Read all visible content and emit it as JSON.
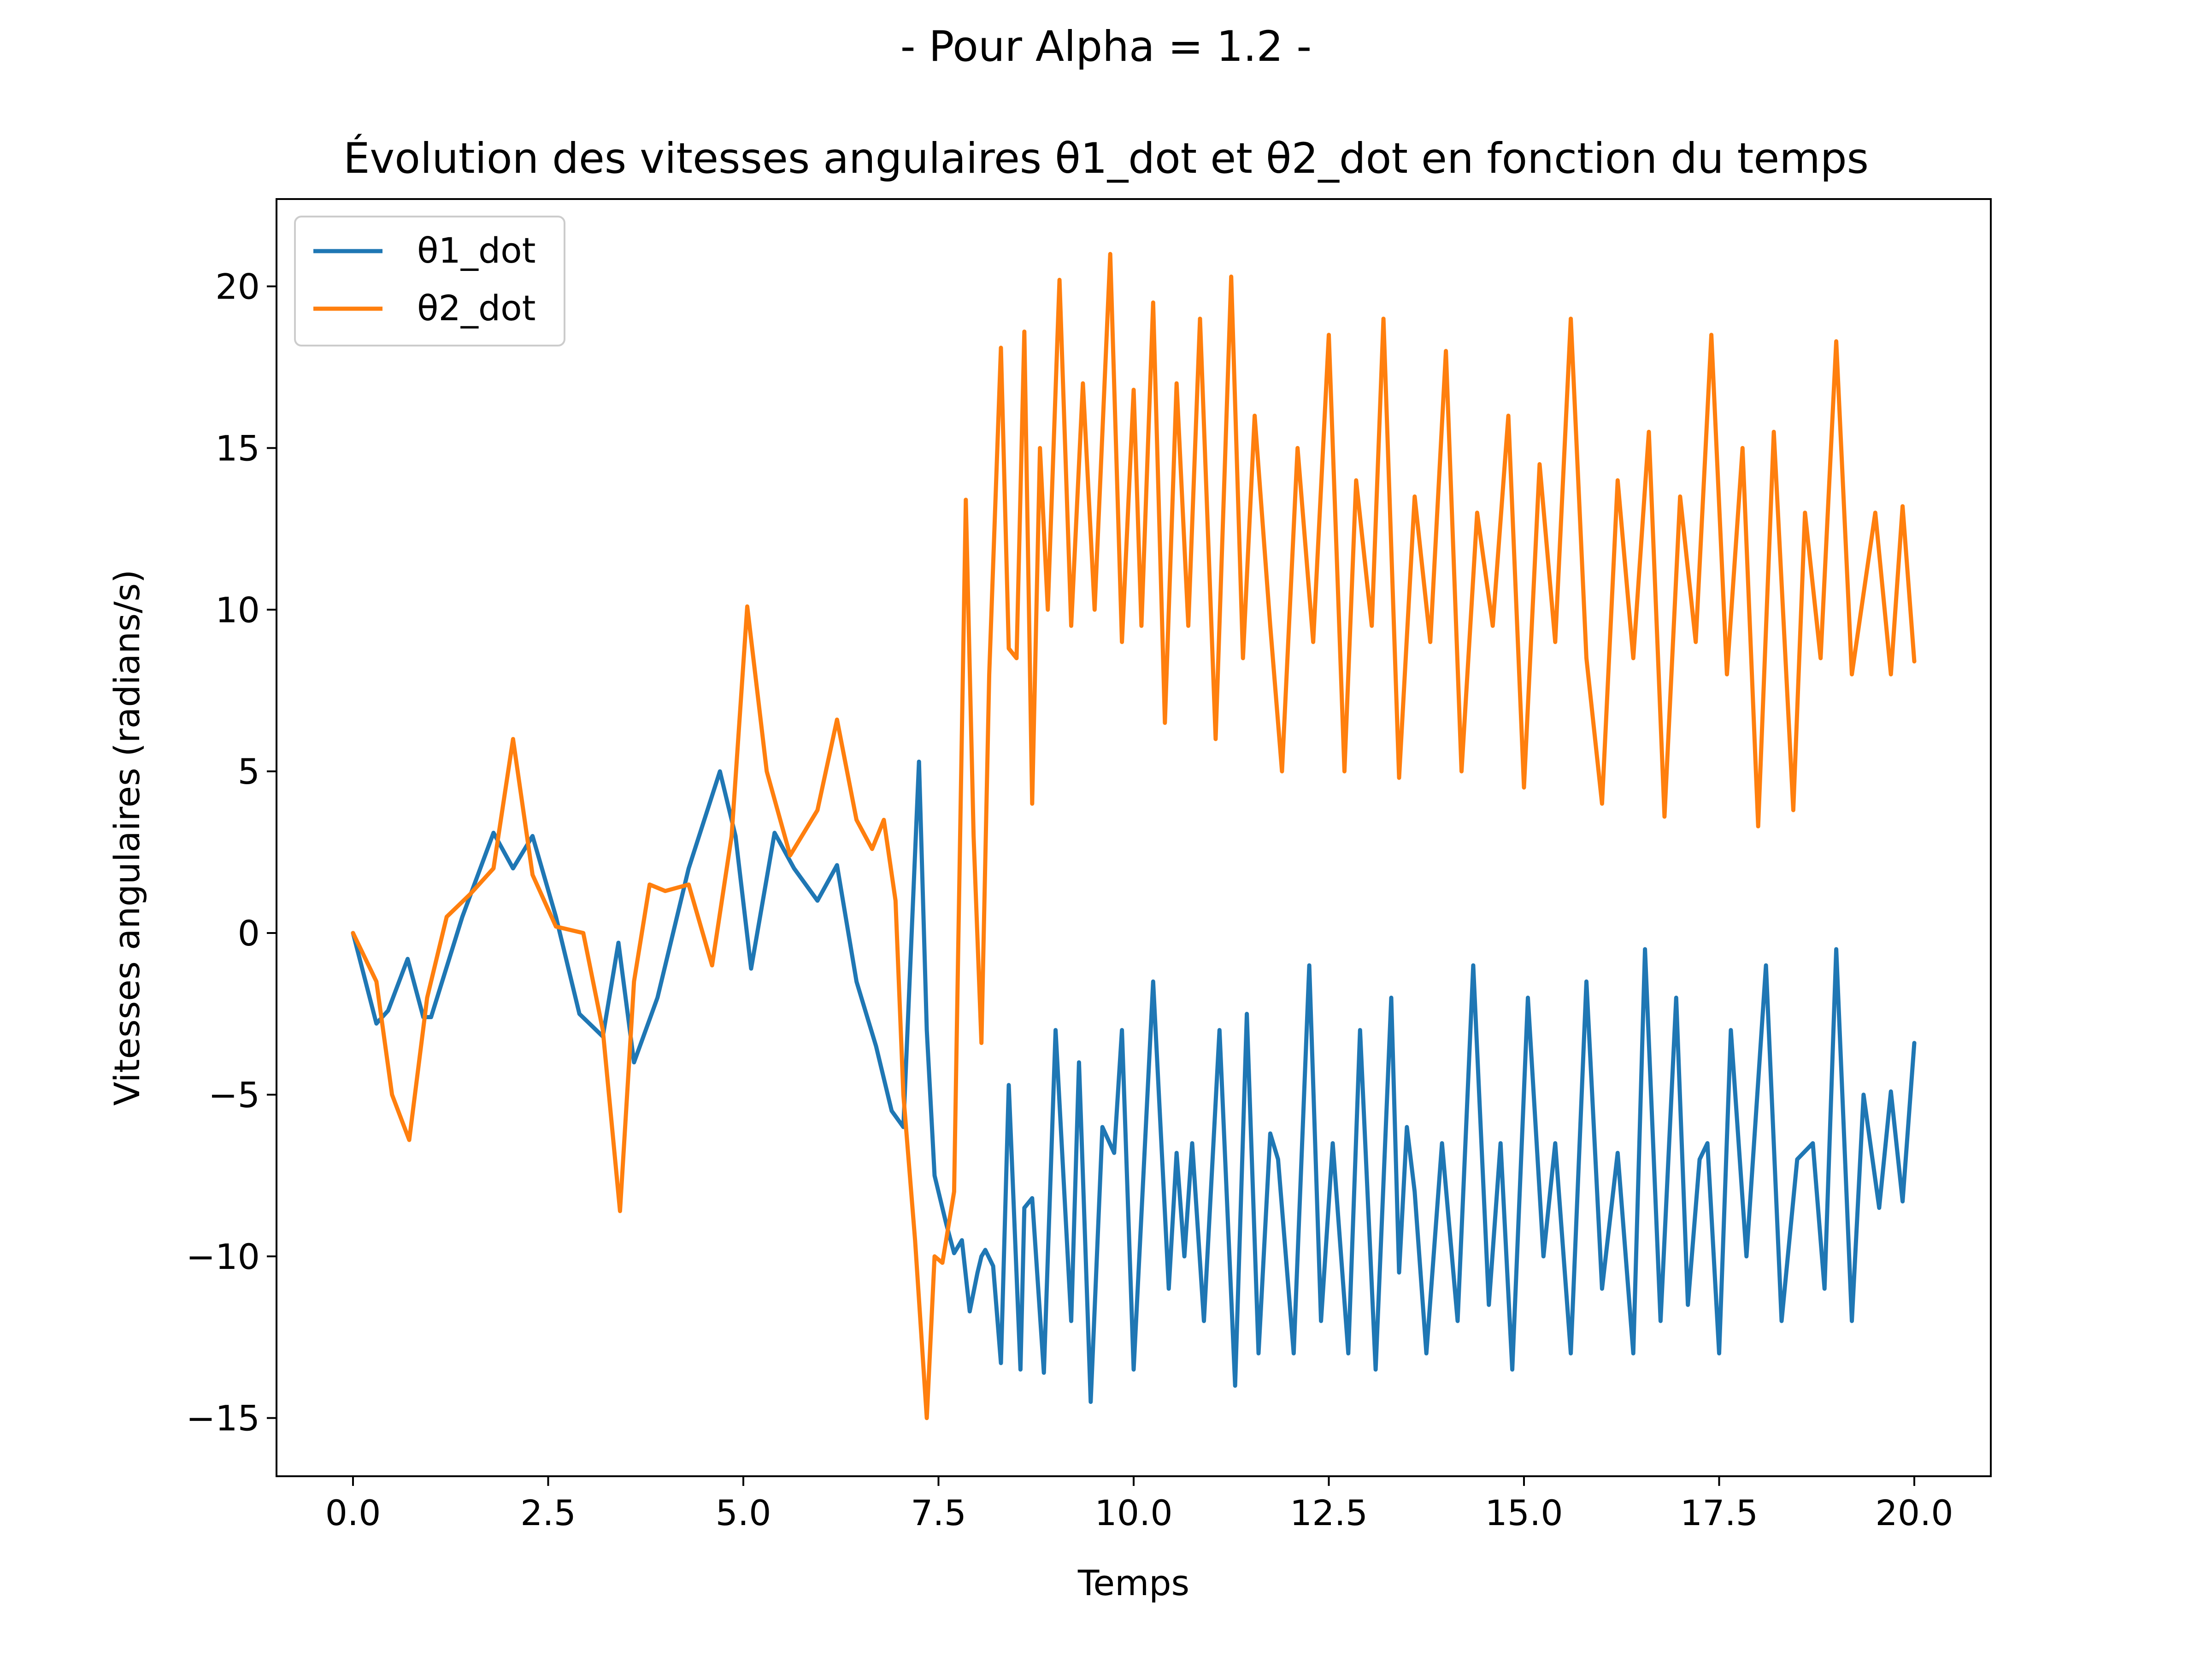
{
  "chart_data": {
    "type": "line",
    "suptitle": "- Pour Alpha = 1.2 -",
    "title": "Évolution des vitesses angulaires θ1_dot et θ2_dot en fonction du temps",
    "xlabel": "Temps",
    "ylabel": "Vitesses angulaires (radians/s)",
    "xlim": [
      -0.98,
      20.98
    ],
    "ylim": [
      -16.8,
      22.7
    ],
    "xticks": [
      0.0,
      2.5,
      5.0,
      7.5,
      10.0,
      12.5,
      15.0,
      17.5,
      20.0
    ],
    "xtick_labels": [
      "0.0",
      "2.5",
      "5.0",
      "7.5",
      "10.0",
      "12.5",
      "15.0",
      "17.5",
      "20.0"
    ],
    "yticks": [
      -15,
      -10,
      -5,
      0,
      5,
      10,
      15,
      20
    ],
    "ytick_labels": [
      "−15",
      "−10",
      "−5",
      "0",
      "5",
      "10",
      "15",
      "20"
    ],
    "grid": false,
    "legend": "upper left",
    "series": [
      {
        "name": "θ1_dot",
        "color": "#1f77b4",
        "x": [
          0.0,
          0.3,
          0.45,
          0.7,
          0.9,
          1.0,
          1.4,
          1.8,
          2.05,
          2.3,
          2.6,
          2.9,
          3.2,
          3.4,
          3.6,
          3.9,
          4.3,
          4.7,
          4.9,
          5.1,
          5.4,
          5.65,
          5.95,
          6.2,
          6.45,
          6.7,
          6.9,
          7.05,
          7.25,
          7.35,
          7.45,
          7.6,
          7.7,
          7.8,
          7.9,
          8.0,
          8.05,
          8.1,
          8.2,
          8.3,
          8.4,
          8.55,
          8.6,
          8.7,
          8.85,
          9.0,
          9.2,
          9.3,
          9.45,
          9.6,
          9.75,
          9.85,
          10.0,
          10.25,
          10.45,
          10.55,
          10.65,
          10.75,
          10.9,
          11.1,
          11.3,
          11.45,
          11.6,
          11.75,
          11.85,
          12.05,
          12.25,
          12.4,
          12.55,
          12.75,
          12.9,
          13.1,
          13.3,
          13.4,
          13.5,
          13.6,
          13.75,
          13.95,
          14.15,
          14.35,
          14.55,
          14.7,
          14.85,
          15.05,
          15.25,
          15.4,
          15.6,
          15.8,
          16.0,
          16.2,
          16.4,
          16.55,
          16.75,
          16.95,
          17.1,
          17.25,
          17.35,
          17.5,
          17.65,
          17.85,
          18.1,
          18.3,
          18.5,
          18.7,
          18.85,
          19.0,
          19.2,
          19.35,
          19.55,
          19.7,
          19.85,
          20.0
        ],
        "y": [
          0,
          -2.8,
          -2.4,
          -0.8,
          -2.6,
          -2.6,
          0.5,
          3.1,
          2.0,
          3.0,
          0.5,
          -2.5,
          -3.2,
          -0.3,
          -4.0,
          -2.0,
          2.0,
          5.0,
          3.0,
          -1.1,
          3.1,
          2.0,
          1.0,
          2.1,
          -1.5,
          -3.5,
          -5.5,
          -6.0,
          5.3,
          -3.0,
          -7.5,
          -9.0,
          -9.9,
          -9.5,
          -11.7,
          -10.5,
          -10.0,
          -9.8,
          -10.3,
          -13.3,
          -4.7,
          -13.5,
          -8.5,
          -8.2,
          -13.6,
          -3.0,
          -12.0,
          -4.0,
          -14.5,
          -6.0,
          -6.8,
          -3.0,
          -13.5,
          -1.5,
          -11.0,
          -6.8,
          -10.0,
          -6.5,
          -12.0,
          -3.0,
          -14.0,
          -2.5,
          -13.0,
          -6.2,
          -7.0,
          -13.0,
          -1.0,
          -12.0,
          -6.5,
          -13.0,
          -3.0,
          -13.5,
          -2.0,
          -10.5,
          -6.0,
          -8.0,
          -13.0,
          -6.5,
          -12.0,
          -1.0,
          -11.5,
          -6.5,
          -13.5,
          -2.0,
          -10.0,
          -6.5,
          -13.0,
          -1.5,
          -11.0,
          -6.8,
          -13.0,
          -0.5,
          -12.0,
          -2.0,
          -11.5,
          -7.0,
          -6.5,
          -13.0,
          -3.0,
          -10.0,
          -1.0,
          -12.0,
          -7.0,
          -6.5,
          -11.0,
          -0.5,
          -12.0,
          -5.0,
          -8.5,
          -4.9,
          -8.3,
          -3.4
        ]
      },
      {
        "name": "θ2_dot",
        "color": "#ff7f0e",
        "x": [
          0.0,
          0.3,
          0.5,
          0.72,
          0.95,
          1.2,
          1.5,
          1.8,
          2.05,
          2.3,
          2.6,
          2.95,
          3.2,
          3.42,
          3.6,
          3.8,
          4.0,
          4.3,
          4.6,
          4.85,
          5.05,
          5.3,
          5.6,
          5.95,
          6.2,
          6.45,
          6.65,
          6.8,
          6.95,
          7.05,
          7.2,
          7.35,
          7.45,
          7.55,
          7.7,
          7.85,
          7.95,
          8.05,
          8.15,
          8.3,
          8.4,
          8.5,
          8.6,
          8.7,
          8.8,
          8.9,
          9.05,
          9.2,
          9.35,
          9.5,
          9.7,
          9.85,
          10.0,
          10.1,
          10.25,
          10.4,
          10.55,
          10.7,
          10.85,
          11.05,
          11.25,
          11.4,
          11.55,
          11.75,
          11.9,
          12.1,
          12.3,
          12.5,
          12.7,
          12.85,
          13.05,
          13.2,
          13.4,
          13.6,
          13.8,
          14.0,
          14.2,
          14.4,
          14.6,
          14.8,
          15.0,
          15.2,
          15.4,
          15.6,
          15.8,
          16.0,
          16.2,
          16.4,
          16.6,
          16.8,
          17.0,
          17.2,
          17.4,
          17.6,
          17.8,
          18.0,
          18.2,
          18.45,
          18.6,
          18.8,
          19.0,
          19.2,
          19.5,
          19.7,
          19.85,
          20.0
        ],
        "y": [
          0,
          -1.5,
          -5.0,
          -6.4,
          -2.0,
          0.5,
          1.2,
          2.0,
          6.0,
          1.8,
          0.2,
          0.0,
          -3.0,
          -8.6,
          -1.5,
          1.5,
          1.3,
          1.5,
          -1.0,
          3.0,
          10.1,
          5.0,
          2.4,
          3.8,
          6.6,
          3.5,
          2.6,
          3.5,
          1.0,
          -5.0,
          -9.5,
          -15.0,
          -10.0,
          -10.2,
          -8.0,
          13.4,
          3.0,
          -3.4,
          8.0,
          18.1,
          8.8,
          8.5,
          18.6,
          4.0,
          15.0,
          10.0,
          20.2,
          9.5,
          17.0,
          10.0,
          21.0,
          9.0,
          16.8,
          9.5,
          19.5,
          6.5,
          17.0,
          9.5,
          19.0,
          6.0,
          20.3,
          8.5,
          16.0,
          9.5,
          5.0,
          15.0,
          9.0,
          18.5,
          5.0,
          14.0,
          9.5,
          19.0,
          4.8,
          13.5,
          9.0,
          18.0,
          5.0,
          13.0,
          9.5,
          16.0,
          4.5,
          14.5,
          9.0,
          19.0,
          8.5,
          4.0,
          14.0,
          8.5,
          15.5,
          3.6,
          13.5,
          9.0,
          18.5,
          8.0,
          15.0,
          3.3,
          15.5,
          3.8,
          13.0,
          8.5,
          18.3,
          8.0,
          13.0,
          8.0,
          13.2,
          8.4
        ]
      }
    ]
  }
}
